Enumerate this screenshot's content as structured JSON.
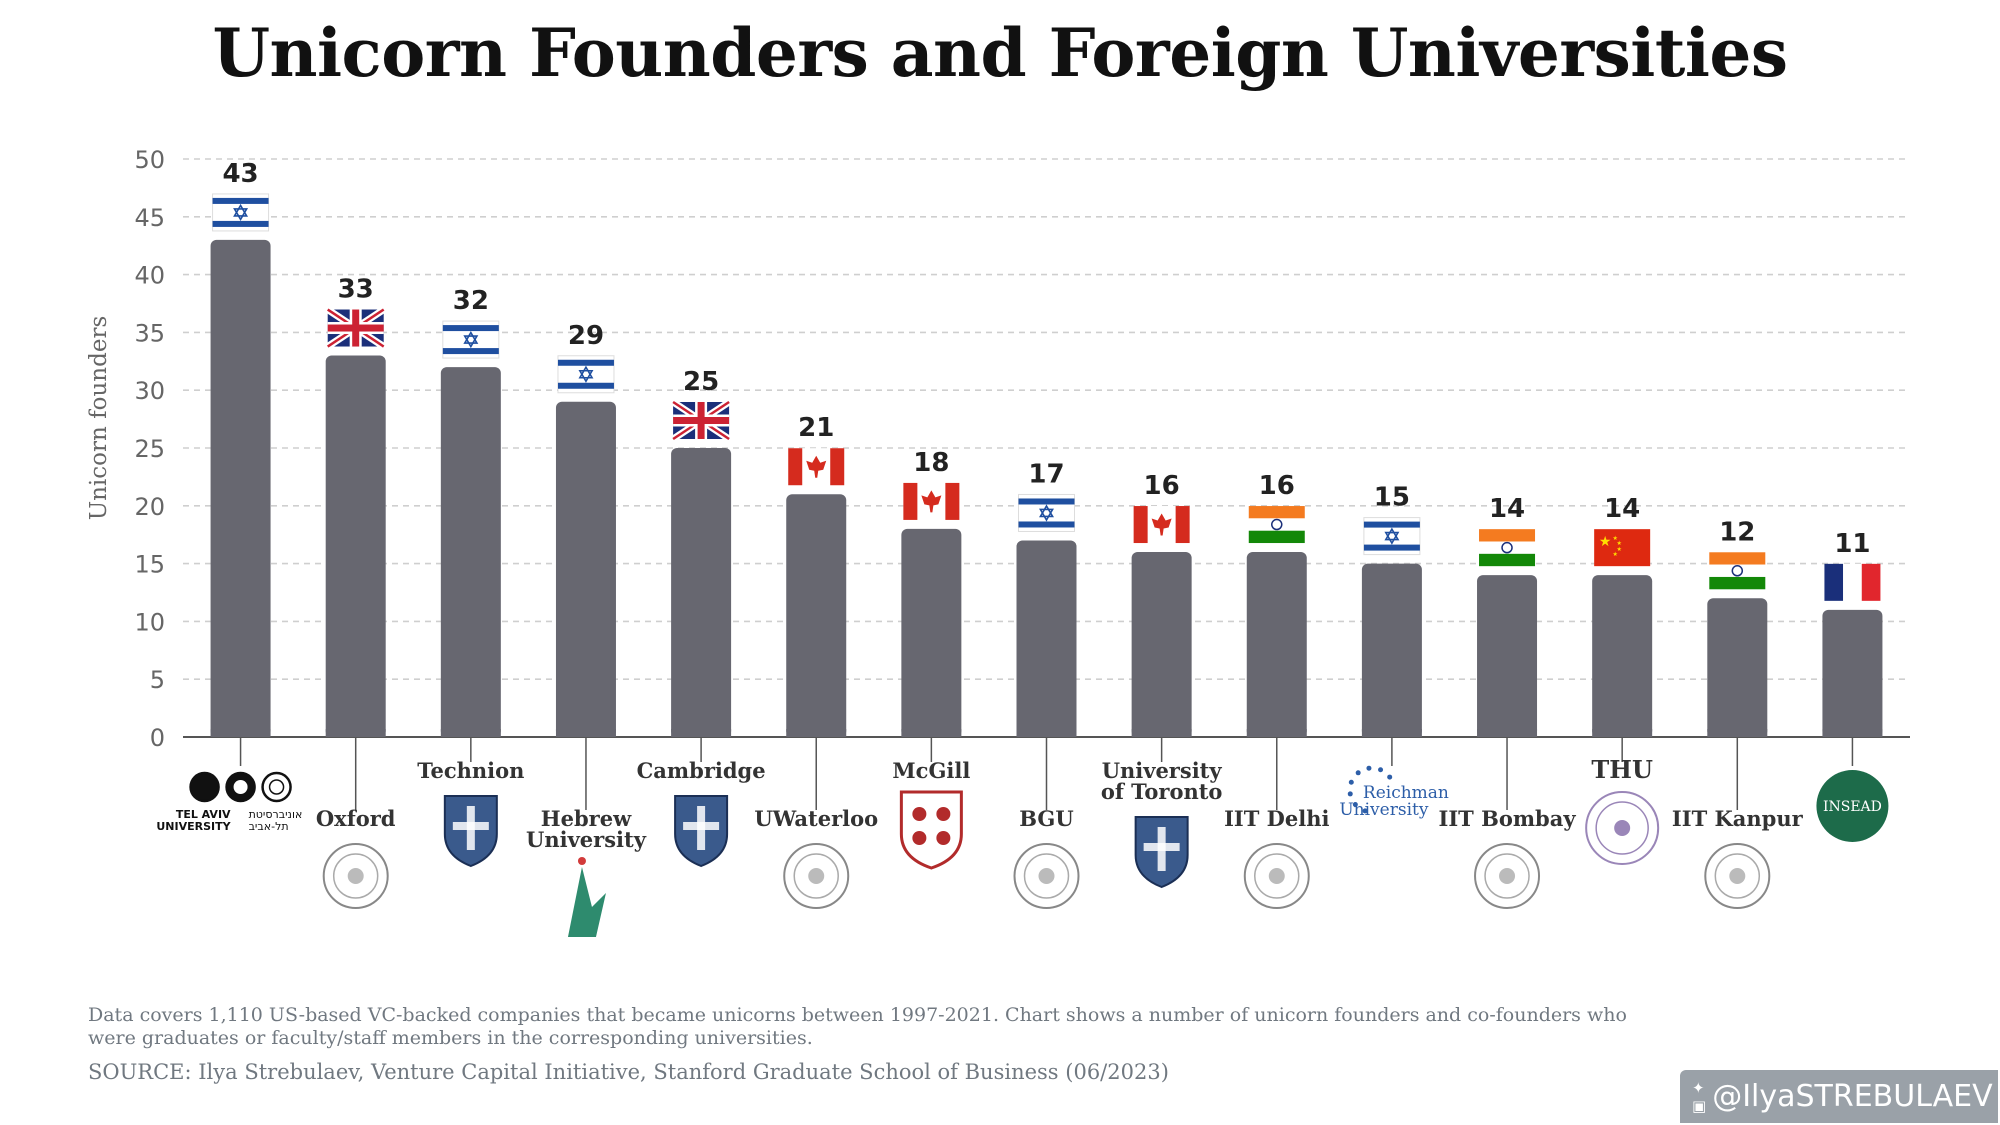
{
  "chart_data": {
    "type": "bar",
    "title": "Unicorn Founders and Foreign Universities",
    "ylabel": "Unicorn founders",
    "xlabel": "",
    "ylim": [
      0,
      50
    ],
    "yticks": [
      0,
      5,
      10,
      15,
      20,
      25,
      30,
      35,
      40,
      45,
      50
    ],
    "grid": true,
    "categories": [
      "Tel Aviv University",
      "Oxford",
      "Technion",
      "Hebrew University",
      "Cambridge",
      "UWaterloo",
      "McGill",
      "BGU",
      "University of Toronto",
      "IIT Delhi",
      "Reichman University",
      "IIT Bombay",
      "THU",
      "IIT Kanpur",
      "INSEAD"
    ],
    "values": [
      43,
      33,
      32,
      29,
      25,
      21,
      18,
      17,
      16,
      16,
      15,
      14,
      14,
      12,
      11
    ],
    "flags": [
      "israel",
      "uk",
      "israel",
      "israel",
      "uk",
      "canada",
      "canada",
      "israel",
      "canada",
      "india",
      "israel",
      "india",
      "china",
      "india",
      "france"
    ],
    "label_lines": [
      [
        "TEL AVIV",
        "UNIVERSITY"
      ],
      [
        "Oxford"
      ],
      [
        "Technion"
      ],
      [
        "Hebrew",
        "University"
      ],
      [
        "Cambridge"
      ],
      [
        "UWaterloo"
      ],
      [
        "McGill"
      ],
      [
        "BGU"
      ],
      [
        "University",
        "of Toronto"
      ],
      [
        "IIT Delhi"
      ],
      [
        "Reichman",
        "University"
      ],
      [
        "IIT Bombay"
      ],
      [
        "THU"
      ],
      [
        "IIT Kanpur"
      ],
      [
        "INSEAD"
      ]
    ],
    "label_rows": [
      "low",
      "high",
      "low",
      "high",
      "low",
      "high",
      "low",
      "high",
      "low",
      "high",
      "low",
      "high",
      "low",
      "high",
      "low"
    ],
    "label_pattern": [
      "a",
      "b",
      "c",
      "d",
      "c",
      "b",
      "e",
      "b",
      "c",
      "b",
      "f",
      "b",
      "g",
      "b",
      "h"
    ],
    "logo_text": {
      "tel_aviv_hebrew": [
        "אוניברסיטת",
        "תל-אביב"
      ],
      "tel_aviv_english": [
        "TEL AVIV",
        "UNIVERSITY"
      ]
    },
    "colors": {
      "bar": "#676770",
      "grid": "#cfcfcf",
      "axis": "#555555",
      "israel_blue": "#1f4fa0",
      "uk_blue": "#1b2f7a",
      "uk_red": "#cc2233",
      "canada_red": "#d52b1e",
      "india_saffron": "#f47b20",
      "india_green": "#138808",
      "china_red": "#de2910",
      "china_yellow": "#ffde00",
      "france_blue": "#1a2f7a",
      "france_red": "#e1262d",
      "insead_green": "#1d6b4a"
    }
  },
  "footnote": {
    "description": "Data covers 1,110 US-based VC-backed companies that became unicorns between 1997-2021. Chart shows a number of unicorn founders and co-founders who were graduates or faculty/staff members in the corresponding universities.",
    "source": "SOURCE: Ilya Strebulaev, Venture Capital Initiative, Stanford Graduate School of Business (06/2023)"
  },
  "social": {
    "handle": "@IlyaSTREBULAEV",
    "icons": [
      "twitter-icon",
      "instagram-icon"
    ]
  }
}
